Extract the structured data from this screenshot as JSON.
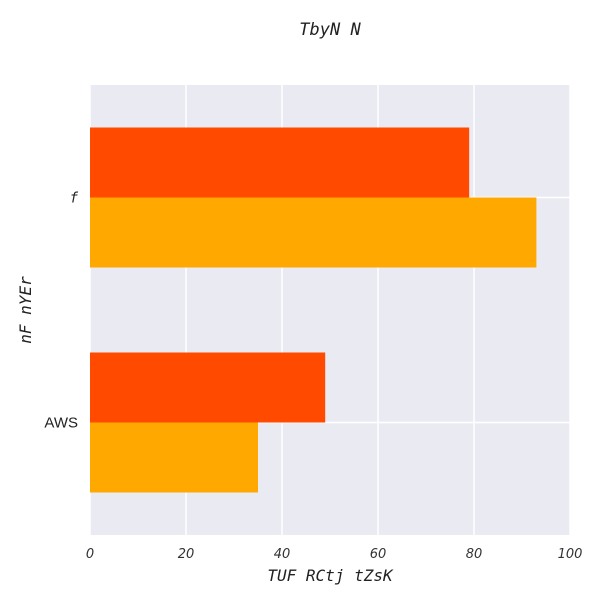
{
  "chart_data": {
    "type": "bar",
    "orientation": "horizontal",
    "title": "TbyN N",
    "xlabel": "TUF RCtj tZsK",
    "ylabel": "nF nYEr",
    "categories": [
      "f",
      "AWS"
    ],
    "series": [
      {
        "color": "#ff4a00",
        "values": [
          79,
          49
        ]
      },
      {
        "color": "#ffa800",
        "values": [
          93,
          35
        ]
      }
    ],
    "xlim": [
      0,
      100
    ],
    "xticks": [
      0,
      20,
      40,
      60,
      80,
      100
    ],
    "grid": true,
    "background": "#eaeaf2"
  }
}
